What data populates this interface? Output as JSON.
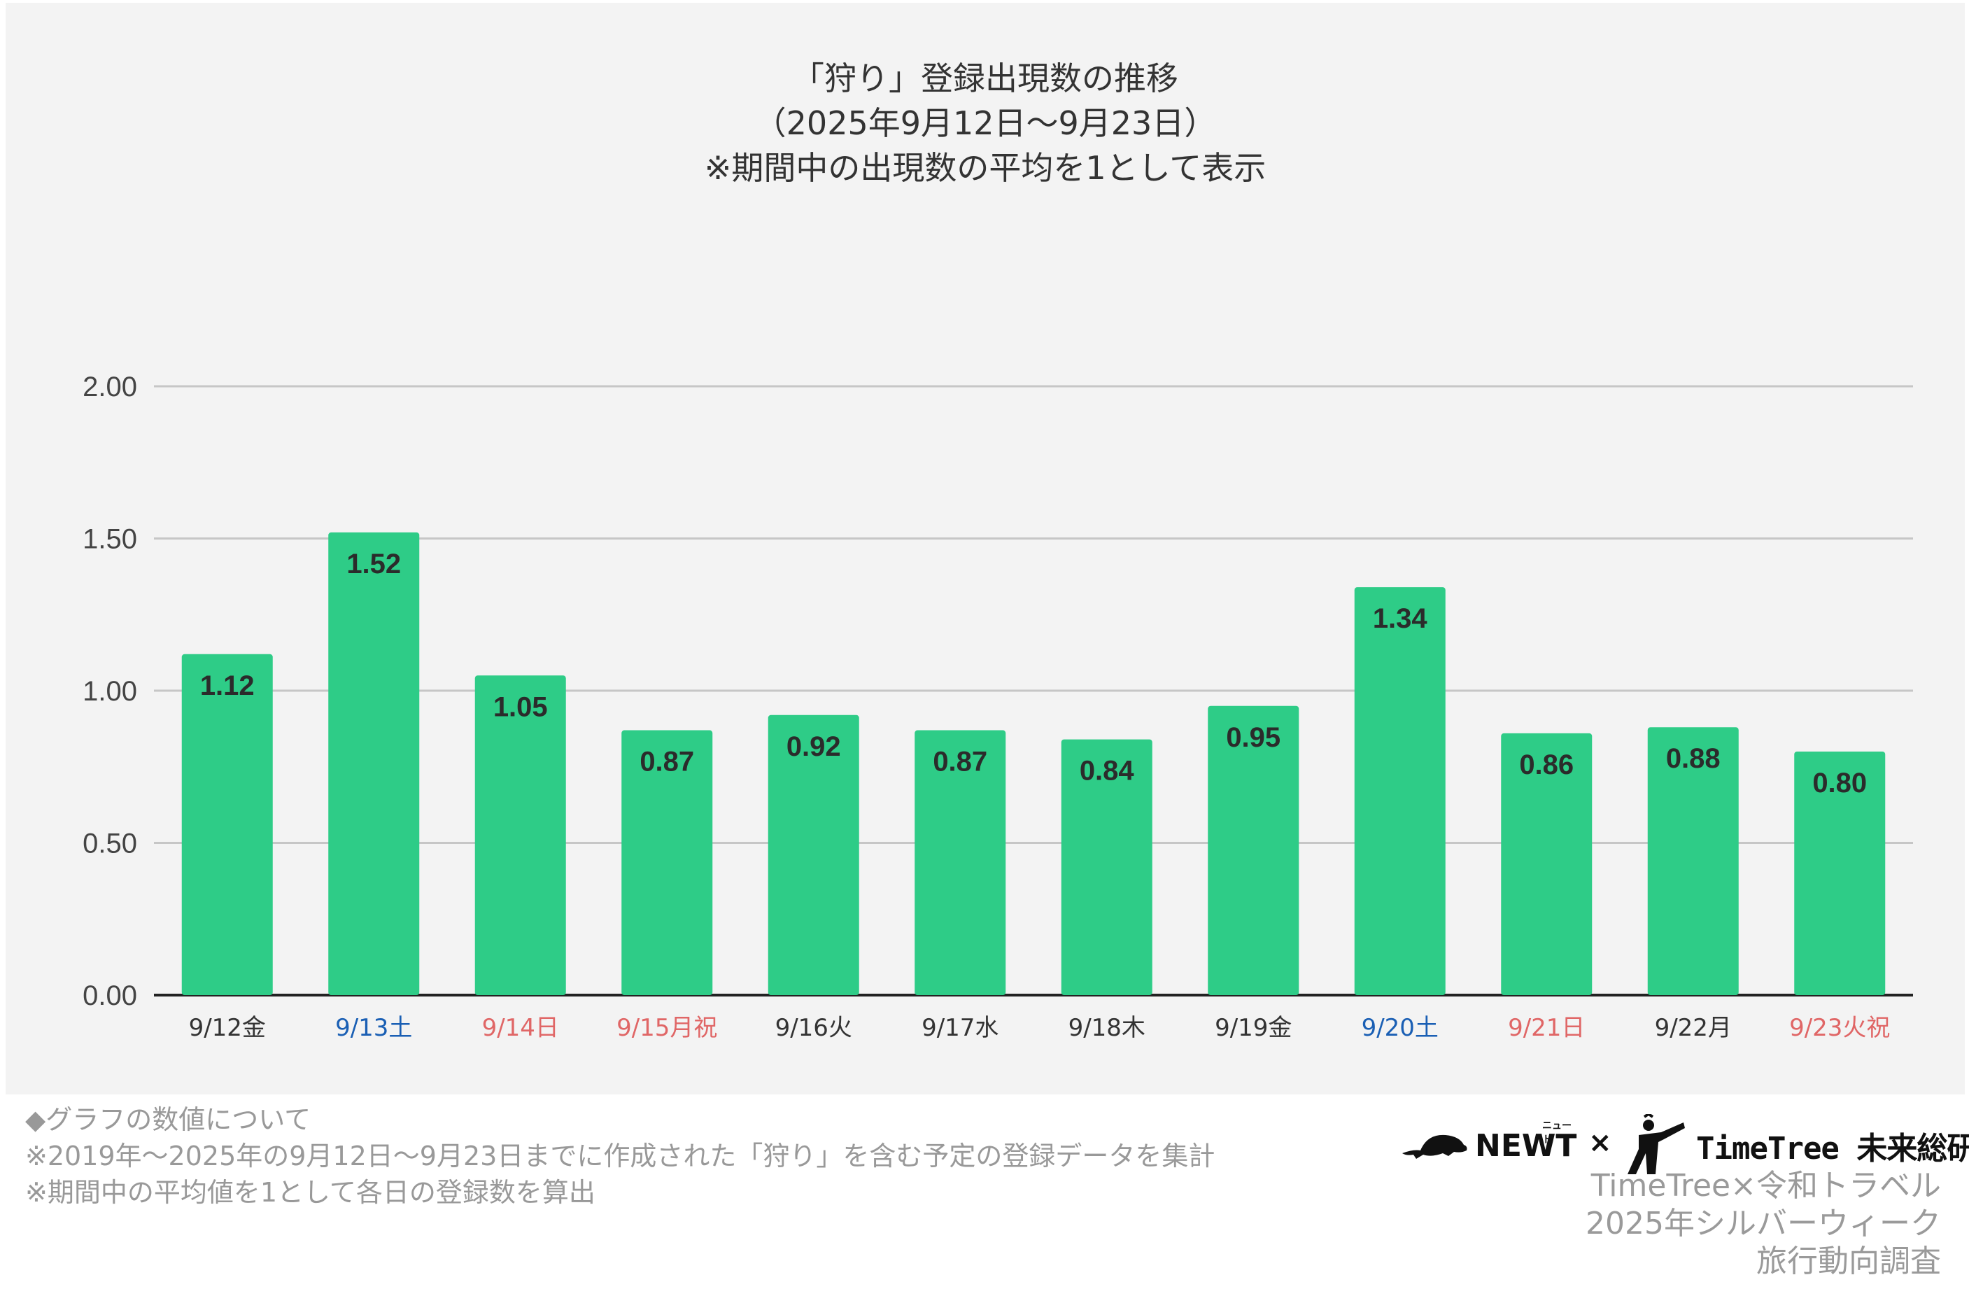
{
  "chart_data": {
    "type": "bar",
    "title_lines": [
      "「狩り」登録出現数の推移",
      "（2025年9月12日〜9月23日）",
      "※期間中の出現数の平均を1として表示"
    ],
    "categories": [
      "9/12金",
      "9/13土",
      "9/14日",
      "9/15月祝",
      "9/16火",
      "9/17水",
      "9/18木",
      "9/19金",
      "9/20土",
      "9/21日",
      "9/22月",
      "9/23火祝"
    ],
    "category_colors": [
      "#333333",
      "#1a5fb4",
      "#e06666",
      "#e06666",
      "#333333",
      "#333333",
      "#333333",
      "#333333",
      "#1a5fb4",
      "#e06666",
      "#333333",
      "#e06666"
    ],
    "values": [
      1.12,
      1.52,
      1.05,
      0.87,
      0.92,
      0.87,
      0.84,
      0.95,
      1.34,
      0.86,
      0.88,
      0.8
    ],
    "value_labels": [
      "1.12",
      "1.52",
      "1.05",
      "0.87",
      "0.92",
      "0.87",
      "0.84",
      "0.95",
      "1.34",
      "0.86",
      "0.88",
      "0.80"
    ],
    "y_ticks": [
      "0.00",
      "0.50",
      "1.00",
      "1.50",
      "2.00"
    ],
    "ylim": [
      0,
      2
    ],
    "bar_color": "#2ecc87",
    "grid": true,
    "xlabel": "",
    "ylabel": ""
  },
  "notes": {
    "heading": "◆グラフの数値について",
    "line1": "※2019年〜2025年の9月12日〜9月23日までに作成された「狩り」を含む予定の登録データを集計",
    "line2": "※期間中の平均値を1として各日の登録数を算出"
  },
  "logos": {
    "newt": "NEWT",
    "newt_sub": "ニュート",
    "times": "×",
    "timetree": "TimeTree 未来総研"
  },
  "survey": {
    "line1": "TimeTree×令和トラベル",
    "line2": "2025年シルバーウィーク",
    "line3": "旅行動向調査"
  }
}
